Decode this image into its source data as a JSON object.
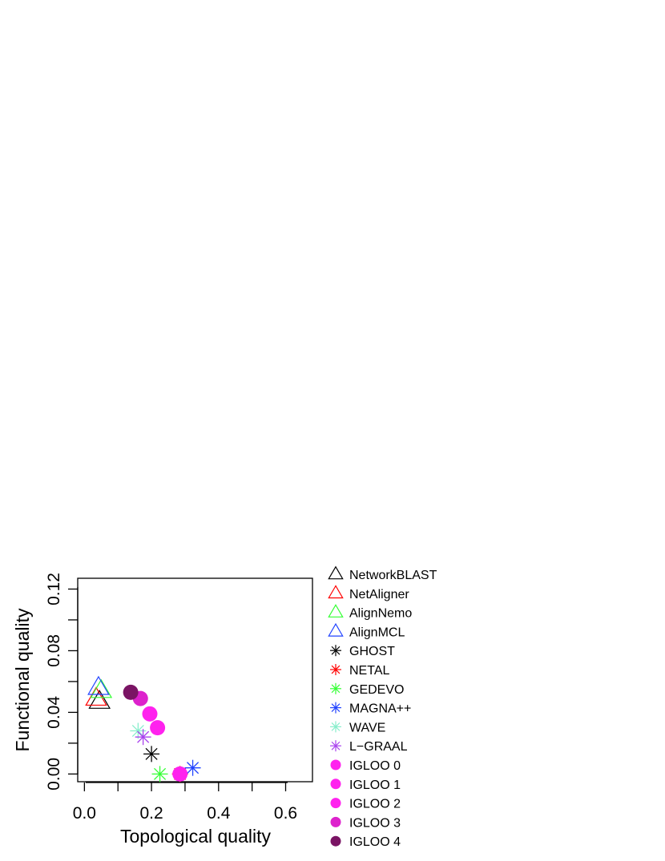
{
  "chart_data": {
    "type": "scatter",
    "title": "",
    "xlabel": "Topological quality",
    "ylabel": "Functional quality",
    "xlim": [
      -0.02,
      0.68
    ],
    "ylim": [
      -0.005,
      0.127
    ],
    "xticks": [
      0.0,
      0.2,
      0.4,
      0.6
    ],
    "xtick_labels": [
      "0.0",
      "0.2",
      "0.4",
      "0.6"
    ],
    "xminor": [
      0.1,
      0.3,
      0.5
    ],
    "yticks": [
      0.0,
      0.04,
      0.08,
      0.12
    ],
    "ytick_labels": [
      "0.00",
      "0.04",
      "0.08",
      "0.12"
    ],
    "yminor": [
      0.02,
      0.06,
      0.1
    ],
    "grid": false,
    "legend_position": "right",
    "series": [
      {
        "name": "NetworkBLAST",
        "marker": "triangle",
        "color": "#000000",
        "x": 0.045,
        "y": 0.047
      },
      {
        "name": "NetAligner",
        "marker": "triangle",
        "color": "#ff0000",
        "x": 0.035,
        "y": 0.049
      },
      {
        "name": "AlignNemo",
        "marker": "triangle",
        "color": "#33ff33",
        "x": 0.05,
        "y": 0.054
      },
      {
        "name": "AlignMCL",
        "marker": "triangle",
        "color": "#2244ff",
        "x": 0.042,
        "y": 0.056
      },
      {
        "name": "GHOST",
        "marker": "asterisk",
        "color": "#000000",
        "x": 0.2,
        "y": 0.013
      },
      {
        "name": "NETAL",
        "marker": "asterisk",
        "color": "#ff0000",
        "x": 0.285,
        "y": 0.0
      },
      {
        "name": "GEDEVO",
        "marker": "asterisk",
        "color": "#33ff33",
        "x": 0.225,
        "y": 0.0
      },
      {
        "name": "MAGNA++",
        "marker": "asterisk",
        "color": "#2244ff",
        "x": 0.323,
        "y": 0.004
      },
      {
        "name": "WAVE",
        "marker": "asterisk",
        "color": "#88eecc",
        "x": 0.16,
        "y": 0.028
      },
      {
        "name": "L−GRAAL",
        "marker": "asterisk",
        "color": "#aa44ee",
        "x": 0.175,
        "y": 0.024
      },
      {
        "name": "IGLOO 0",
        "marker": "circle",
        "color": "#ff22ee",
        "x": 0.285,
        "y": 0.0
      },
      {
        "name": "IGLOO 1",
        "marker": "circle",
        "color": "#ff22ee",
        "x": 0.218,
        "y": 0.03
      },
      {
        "name": "IGLOO 2",
        "marker": "circle",
        "color": "#ff22ee",
        "x": 0.195,
        "y": 0.039
      },
      {
        "name": "IGLOO 3",
        "marker": "circle",
        "color": "#dd22cc",
        "x": 0.167,
        "y": 0.049
      },
      {
        "name": "IGLOO 4",
        "marker": "circle",
        "color": "#7a1464",
        "x": 0.138,
        "y": 0.053
      }
    ]
  }
}
